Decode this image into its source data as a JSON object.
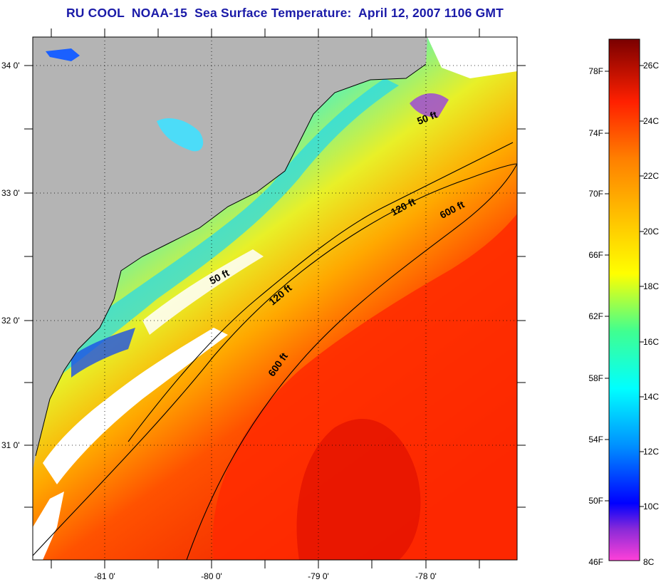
{
  "title": "RU COOL  NOAA-15  Sea Surface Temperature:  April 12, 2007 1106 GMT",
  "lat_labels": [
    "34 0'",
    "33 0'",
    "32 0'",
    "31 0'"
  ],
  "lon_labels": [
    "-81 0'",
    "-80 0'",
    "-79 0'",
    "-78 0'"
  ],
  "contour_labels": {
    "c50a": "50 ft",
    "c50b": "50 ft",
    "c120a": "120 ft",
    "c120b": "120 ft",
    "c600a": "600 ft",
    "c600b": "600 ft"
  },
  "colorbar": {
    "f_labels": [
      "78F",
      "74F",
      "70F",
      "66F",
      "62F",
      "58F",
      "54F",
      "50F",
      "46F"
    ],
    "c_labels": [
      "26C",
      "24C",
      "22C",
      "20C",
      "18C",
      "16C",
      "14C",
      "12C",
      "10C",
      "8C"
    ]
  },
  "colors": {
    "land": "#b4b4b4",
    "cloud": "#ffffff",
    "cold_water": "#22e0f0",
    "warm_water": "#ff2a00",
    "title": "#1a1aa8"
  }
}
